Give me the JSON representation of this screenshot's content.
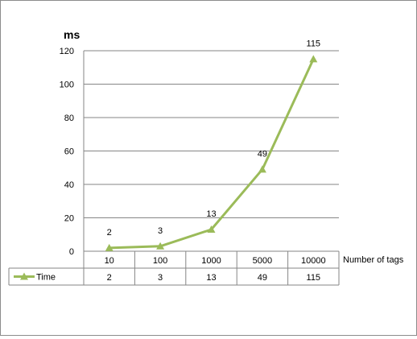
{
  "chart_data": {
    "type": "line",
    "title": "",
    "ylabel": "ms",
    "xlabel": "Number of tags",
    "ylim": [
      0,
      120
    ],
    "yticks": [
      0,
      20,
      40,
      60,
      80,
      100,
      120
    ],
    "grid": true,
    "categories": [
      "10",
      "100",
      "1000",
      "5000",
      "10000"
    ],
    "series": [
      {
        "name": "Time",
        "values": [
          2,
          3,
          13,
          49,
          115
        ]
      }
    ],
    "data_labels": true,
    "data_table": true,
    "legend": "data-table",
    "colors": {
      "series": "#9bbb59",
      "grid": "#868686",
      "axis": "#868686"
    }
  }
}
